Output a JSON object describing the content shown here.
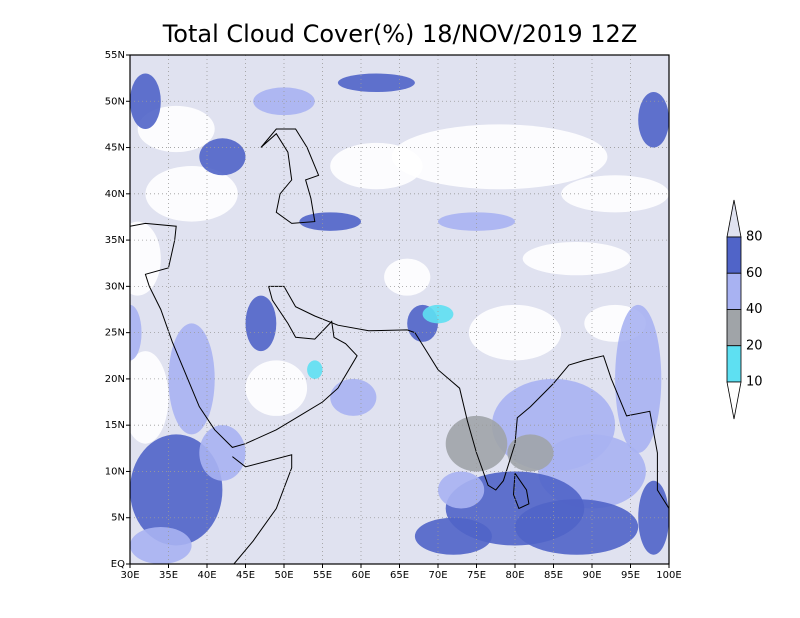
{
  "title": "Total Cloud Cover(%) 18/NOV/2019 12Z",
  "map": {
    "xlim": [
      30,
      100
    ],
    "ylim": [
      0,
      55
    ],
    "grid": true,
    "xticks": [
      {
        "value": 30,
        "label": "30E"
      },
      {
        "value": 35,
        "label": "35E"
      },
      {
        "value": 40,
        "label": "40E"
      },
      {
        "value": 45,
        "label": "45E"
      },
      {
        "value": 50,
        "label": "50E"
      },
      {
        "value": 55,
        "label": "55E"
      },
      {
        "value": 60,
        "label": "60E"
      },
      {
        "value": 65,
        "label": "65E"
      },
      {
        "value": 70,
        "label": "70E"
      },
      {
        "value": 75,
        "label": "75E"
      },
      {
        "value": 80,
        "label": "80E"
      },
      {
        "value": 85,
        "label": "85E"
      },
      {
        "value": 90,
        "label": "90E"
      },
      {
        "value": 95,
        "label": "95E"
      },
      {
        "value": 100,
        "label": "100E"
      }
    ],
    "yticks": [
      {
        "value": 0,
        "label": "EQ"
      },
      {
        "value": 5,
        "label": "5N"
      },
      {
        "value": 10,
        "label": "10N"
      },
      {
        "value": 15,
        "label": "15N"
      },
      {
        "value": 20,
        "label": "20N"
      },
      {
        "value": 25,
        "label": "25N"
      },
      {
        "value": 30,
        "label": "30N"
      },
      {
        "value": 35,
        "label": "35N"
      },
      {
        "value": 40,
        "label": "40N"
      },
      {
        "value": 45,
        "label": "45N"
      },
      {
        "value": 50,
        "label": "50N"
      },
      {
        "value": 55,
        "label": "55N"
      }
    ]
  },
  "colorbar": {
    "levels": [
      10,
      20,
      40,
      60,
      80
    ],
    "colors": [
      "#ffffff",
      "#5ee0f2",
      "#a0a4a8",
      "#a8b2f2",
      "#5064c8",
      "#e0e2f0"
    ]
  }
}
